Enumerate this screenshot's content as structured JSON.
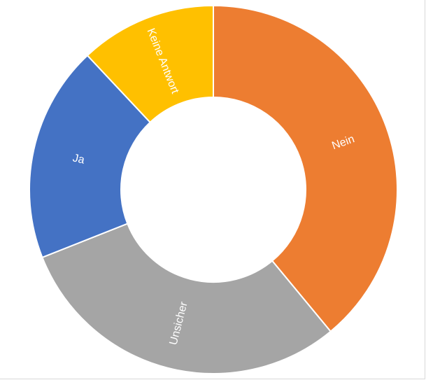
{
  "chart_data": {
    "type": "pie",
    "variant": "doughnut",
    "title": "",
    "legend": "none",
    "slices": [
      {
        "label": "Nein",
        "value": 39,
        "color": "#ED7D31"
      },
      {
        "label": "Unsicher",
        "value": 30,
        "color": "#A5A5A5"
      },
      {
        "label": "Ja",
        "value": 19,
        "color": "#4472C4"
      },
      {
        "label": "Keine Antwort",
        "value": 12,
        "color": "#FFC000"
      }
    ]
  }
}
